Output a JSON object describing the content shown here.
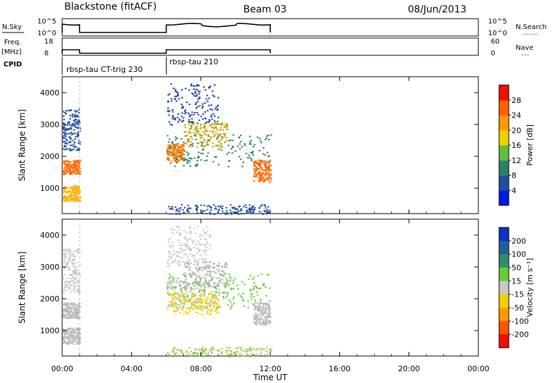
{
  "header": {
    "title": "Blackstone (fitACF)",
    "beam": "Beam 03",
    "date": "08/Jun/2013"
  },
  "noise_panel": {
    "left_label": "N.Sky",
    "right_label": "N.Search",
    "left_ticks": [
      "10^5",
      "10^0"
    ],
    "right_ticks": [
      "10^5",
      "10^0"
    ],
    "right_legend_dots": "........"
  },
  "freq_panel": {
    "left_label_1": "Freq.",
    "left_label_2": "[MHz]",
    "right_label": "Nave",
    "left_ticks": [
      "18",
      "8"
    ],
    "right_ticks": [
      "60",
      "0"
    ],
    "right_legend_dots": "...."
  },
  "cpid": {
    "label": "CPID",
    "segments": [
      {
        "name": "rbsp-tau CT-trig 230",
        "start_hr": 0.0,
        "end_hr": 1.0
      },
      {
        "name": "rbsp-tau 210",
        "start_hr": 6.0,
        "end_hr": 12.0
      }
    ]
  },
  "time_axis": {
    "label": "Time UT",
    "start_hr": 0,
    "end_hr": 24,
    "tick_labels": [
      "00:00",
      "04:00",
      "08:00",
      "12:00",
      "16:00",
      "20:00",
      "00:00"
    ]
  },
  "chart_data": [
    {
      "type": "heatmap",
      "panel": "power",
      "ylabel": "Slant Range [km]",
      "yticks": [
        "1000",
        "2000",
        "3000",
        "4000"
      ],
      "ylim": [
        200,
        4500
      ],
      "colorbar_label": "Power [dB]",
      "colorbar_ticks": [
        "4",
        "8",
        "12",
        "16",
        "20",
        "24",
        "28"
      ],
      "colorbar_colors": [
        "#0018e8",
        "#1f4f9f",
        "#2d7f6a",
        "#5fbf3a",
        "#f0d000",
        "#ff9b00",
        "#ff6000",
        "#ee1000"
      ],
      "scatter_groups": [
        {
          "t": [
            0.0,
            1.0
          ],
          "r": [
            1450,
            1900
          ],
          "color": "#ff6a00"
        },
        {
          "t": [
            0.0,
            1.0
          ],
          "r": [
            600,
            1100
          ],
          "color": "#ffb000"
        },
        {
          "t": [
            0.0,
            1.0
          ],
          "r": [
            2200,
            3500
          ],
          "color": "#1f4f9f"
        },
        {
          "t": [
            6.0,
            7.0
          ],
          "r": [
            1850,
            2400
          ],
          "color": "#ff7a00"
        },
        {
          "t": [
            6.0,
            12.0
          ],
          "r": [
            1700,
            2700
          ],
          "color": "#2d7f6a"
        },
        {
          "t": [
            7.0,
            9.5
          ],
          "r": [
            2300,
            3100
          ],
          "color": "#c8a400"
        },
        {
          "t": [
            6.0,
            9.0
          ],
          "r": [
            3000,
            4300
          ],
          "color": "#1f3f9f"
        },
        {
          "t": [
            11.0,
            12.0
          ],
          "r": [
            1200,
            1900
          ],
          "color": "#ff6a00"
        },
        {
          "t": [
            6.0,
            12.0
          ],
          "r": [
            200,
            500
          ],
          "color": "#1f4f9f"
        }
      ]
    },
    {
      "type": "heatmap",
      "panel": "velocity",
      "ylabel": "Slant Range [km]",
      "yticks": [
        "1000",
        "2000",
        "3000",
        "4000"
      ],
      "ylim": [
        200,
        4500
      ],
      "colorbar_label": "Velocity [m s⁻¹]",
      "colorbar_ticks": [
        "200",
        "100",
        "50",
        "15",
        "-15",
        "-50",
        "-100",
        "-200"
      ],
      "colorbar_colors": [
        "#1030c0",
        "#1f5f9f",
        "#2d8f6a",
        "#66cc33",
        "#c8c8c8",
        "#f0d000",
        "#ff9b00",
        "#ff5500",
        "#ee1000"
      ],
      "scatter_groups": [
        {
          "t": [
            0.0,
            1.0
          ],
          "r": [
            1400,
            1900
          ],
          "color": "#b8b8b8"
        },
        {
          "t": [
            0.0,
            1.0
          ],
          "r": [
            600,
            1100
          ],
          "color": "#b8b8b8"
        },
        {
          "t": [
            0.0,
            1.0
          ],
          "r": [
            2200,
            3600
          ],
          "color": "#c8c8c8"
        },
        {
          "t": [
            6.0,
            9.0
          ],
          "r": [
            1700,
            2600
          ],
          "color": "#b8b8b8"
        },
        {
          "t": [
            6.0,
            12.0
          ],
          "r": [
            1700,
            2800
          ],
          "color": "#66cc33"
        },
        {
          "t": [
            7.0,
            9.5
          ],
          "r": [
            2400,
            3200
          ],
          "color": "#b0b0b0"
        },
        {
          "t": [
            6.0,
            8.5
          ],
          "r": [
            3000,
            4300
          ],
          "color": "#c8c8c8"
        },
        {
          "t": [
            6.0,
            9.0
          ],
          "r": [
            1500,
            2200
          ],
          "color": "#f0d000"
        },
        {
          "t": [
            11.0,
            12.0
          ],
          "r": [
            1200,
            1900
          ],
          "color": "#b8b8b8"
        },
        {
          "t": [
            6.0,
            12.0
          ],
          "r": [
            200,
            500
          ],
          "color": "#99cc55"
        }
      ]
    }
  ]
}
